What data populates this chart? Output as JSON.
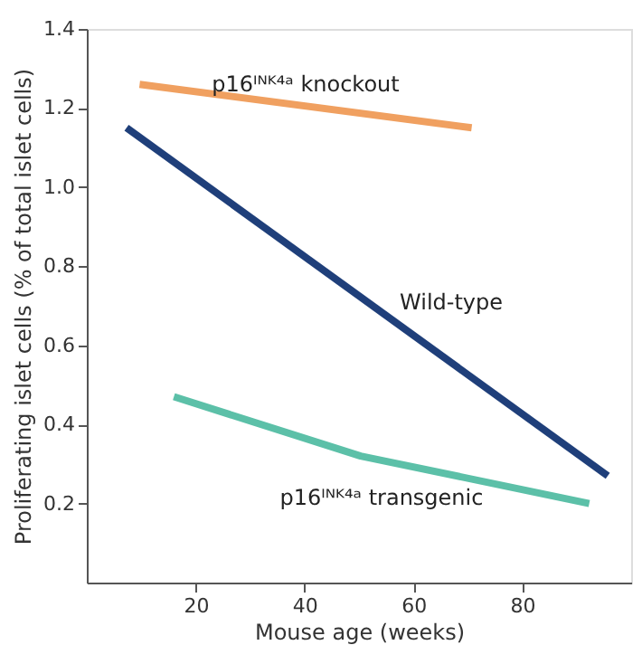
{
  "chart_data": {
    "type": "line",
    "xlabel": "Mouse age (weeks)",
    "ylabel": "Proliferating islet cells (% of total islet cells)",
    "xlim": [
      0,
      100
    ],
    "xticks": [
      20,
      40,
      60,
      80
    ],
    "ylim": [
      0,
      1.4
    ],
    "yticks": [
      0.2,
      0.4,
      0.6,
      0.8,
      {
        "value": 1,
        "label": "1.0"
      },
      1.2,
      1.4
    ],
    "grid": false,
    "legend": false,
    "marker": "none",
    "line_style": "solid",
    "series": [
      {
        "name": "p16ᴵᴺᴷ⁴ᵃ knockout",
        "color": "#f0a060",
        "x": [
          9.7,
          70.7
        ],
        "values": [
          1.26,
          1.15
        ]
      },
      {
        "name": "Wild-type",
        "color": "#1f3f7a",
        "x": [
          7.3,
          95.7
        ],
        "values": [
          1.15,
          0.27
        ]
      },
      {
        "name": "p16ᴵᴺᴷ⁴ᵃ transgenic",
        "color": "#5cc0a8",
        "x": [
          16,
          50.3,
          92.3
        ],
        "values": [
          0.47,
          0.32,
          0.2
        ]
      }
    ]
  }
}
